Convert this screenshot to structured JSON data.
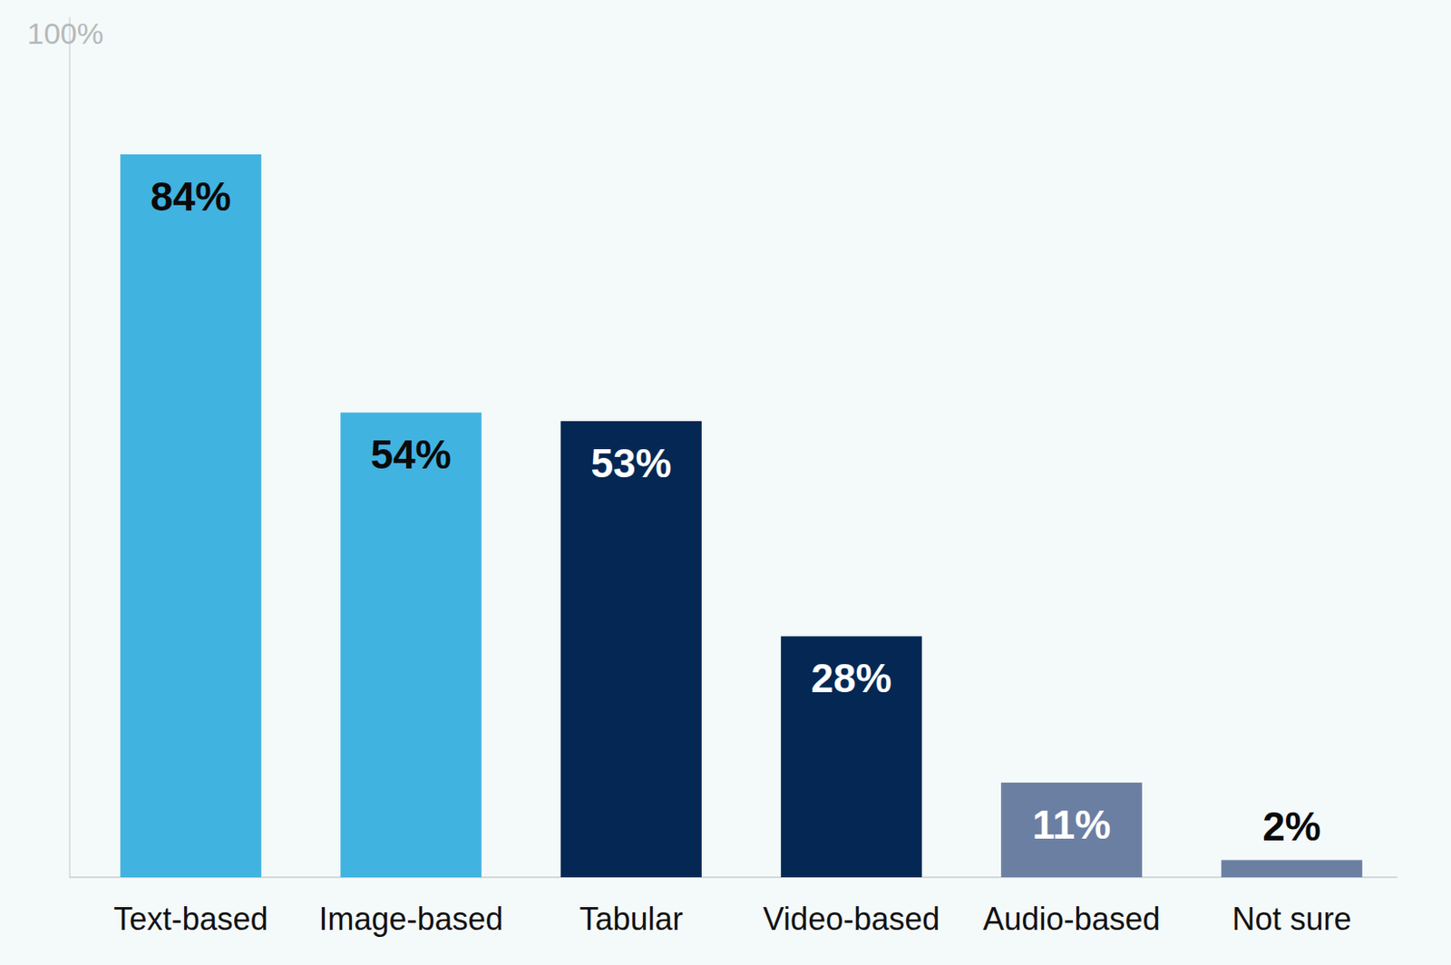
{
  "chart_data": {
    "type": "bar",
    "categories": [
      "Text-based",
      "Image-based",
      "Tabular",
      "Video-based",
      "Audio-based",
      "Not sure"
    ],
    "values": [
      84,
      54,
      53,
      28,
      11,
      2
    ],
    "value_labels": [
      "84%",
      "54%",
      "53%",
      "28%",
      "11%",
      "2%"
    ],
    "colors": [
      "#41b3e0",
      "#41b3e0",
      "#042853",
      "#042853",
      "#6b7fa3",
      "#6b7fa3"
    ],
    "ylim": [
      0,
      100
    ],
    "yticks": [
      {
        "value": 100,
        "label": "100%"
      }
    ],
    "data_labels": true,
    "grid": false
  }
}
